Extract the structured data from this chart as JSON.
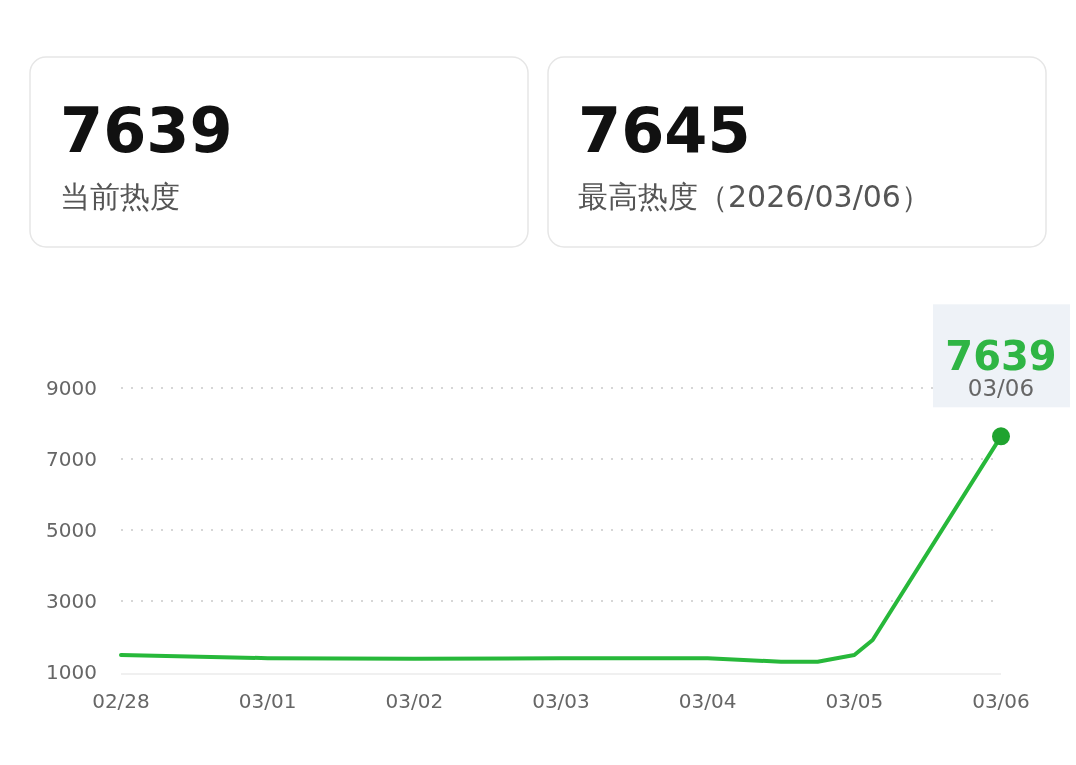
{
  "chart_data": [
    {
      "type": "other",
      "title": "7639",
      "subtitle": "当前热度"
    },
    {
      "type": "other",
      "title": "7645",
      "subtitle": "最高热度（2026/03/06）"
    },
    {
      "type": "line",
      "x": [
        "2026-02-28T00:00",
        "2026-03-01T00:00",
        "2026-03-02T00:00",
        "2026-03-03T00:00",
        "2026-03-04T00:00",
        "2026-03-04T12:00",
        "2026-03-04T18:00",
        "2026-03-05T00:00",
        "2026-03-05T03:00",
        "2026-03-06T00:00"
      ],
      "series": [
        {
          "type": "line",
          "color": "#27b83a",
          "values": [
            1480,
            1390,
            1370,
            1390,
            1390,
            1290,
            1290,
            1480,
            1900,
            7639
          ]
        },
        {
          "type": "scatter",
          "color": "#1fa32f",
          "x": [
            "2026-03-06T00:00"
          ],
          "values": [
            7639
          ]
        }
      ],
      "xlim": [
        "2026-02-28",
        "2026-03-06"
      ],
      "xticks": [
        {
          "value": "2026-02-28",
          "label": "02/28"
        },
        {
          "value": "2026-03-01",
          "label": "03/01"
        },
        {
          "value": "2026-03-02",
          "label": "03/02"
        },
        {
          "value": "2026-03-03",
          "label": "03/03"
        },
        {
          "value": "2026-03-04",
          "label": "03/04"
        },
        {
          "value": "2026-03-05",
          "label": "03/05"
        },
        {
          "value": "2026-03-06",
          "label": "03/06"
        }
      ],
      "ylim": [
        1000,
        9000
      ],
      "yticks": [
        1000,
        3000,
        5000,
        7000,
        9000
      ],
      "grid": "y",
      "annotations": [
        {
          "text": "7639",
          "x": "2026-03-06",
          "y": 7639
        },
        {
          "text": "03/06",
          "x": "2026-03-06",
          "y": 7639
        }
      ]
    }
  ]
}
